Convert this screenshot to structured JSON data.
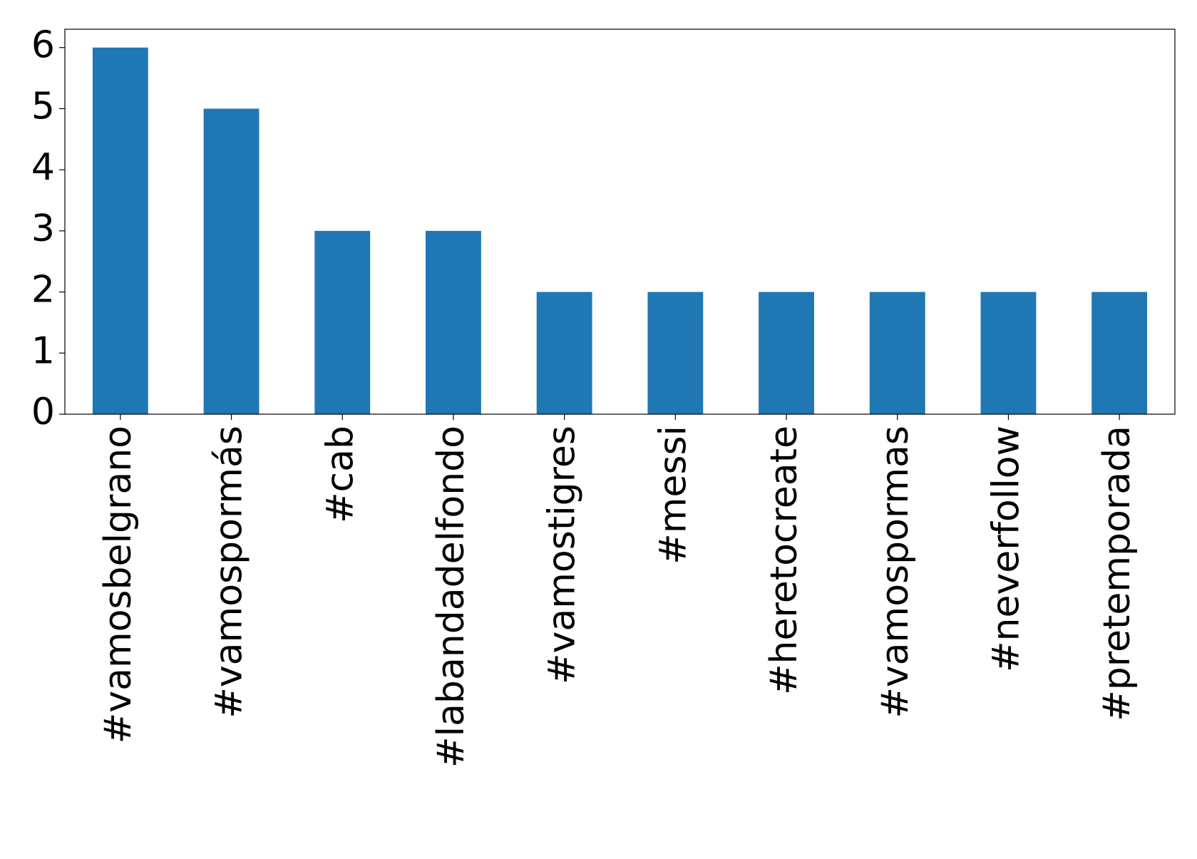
{
  "chart_data": {
    "type": "bar",
    "categories": [
      "#vamosbelgrano",
      "#vamospormás",
      "#cab",
      "#labandadelfondo",
      "#vamostigres",
      "#messi",
      "#heretocreate",
      "#vamospormas",
      "#neverfollow",
      "#pretemporada"
    ],
    "values": [
      6,
      5,
      3,
      3,
      2,
      2,
      2,
      2,
      2,
      2
    ],
    "color": "#1f77b4",
    "ylim": [
      0,
      6.3
    ],
    "yticks": [
      0,
      1,
      2,
      3,
      4,
      5,
      6
    ],
    "grid": false
  }
}
